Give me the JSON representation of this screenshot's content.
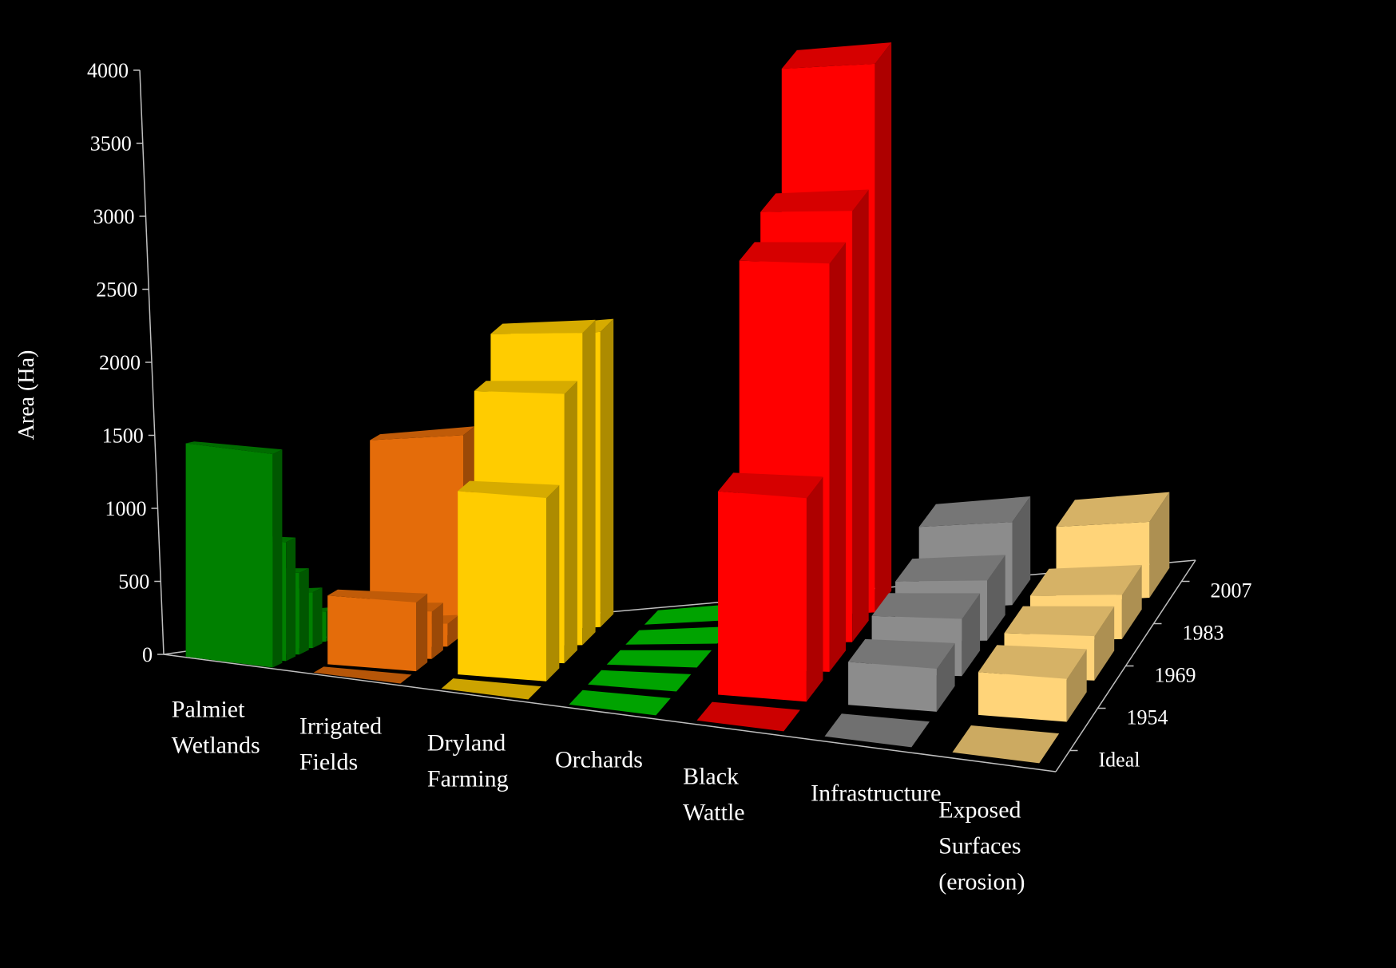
{
  "chart_data": {
    "type": "bar",
    "subtype": "3d-clustered-depth",
    "ylabel": "Area (Ha)",
    "ylim": [
      0,
      4000
    ],
    "yticks": [
      0,
      500,
      1000,
      1500,
      2000,
      2500,
      3000,
      3500,
      4000
    ],
    "ytick_labels": [
      "0",
      "500",
      "1000",
      "1500",
      "2000",
      "2500",
      "3000",
      "3500",
      "4000"
    ],
    "categories": [
      [
        "Palmiet",
        "Wetlands"
      ],
      [
        "Irrigated",
        "Fields"
      ],
      [
        "Dryland",
        "Farming"
      ],
      [
        "Orchards"
      ],
      [
        "Black",
        "Wattle"
      ],
      [
        "Infrastructure"
      ],
      [
        "Exposed",
        "Surfaces",
        "(erosion)"
      ]
    ],
    "depth_labels": [
      "Ideal",
      "1954",
      "1969",
      "1983",
      "2007"
    ],
    "series": [
      {
        "values": [
          1490,
          0,
          0,
          0,
          0,
          0,
          0
        ]
      },
      {
        "values": [
          830,
          480,
          1280,
          0,
          1420,
          300,
          300
        ]
      },
      {
        "values": [
          570,
          330,
          1880,
          0,
          2850,
          400,
          310
        ]
      },
      {
        "values": [
          390,
          160,
          2180,
          0,
          3010,
          420,
          310
        ]
      },
      {
        "values": [
          210,
          1390,
          2060,
          0,
          3830,
          580,
          530
        ]
      }
    ],
    "category_colors": [
      "#008000",
      "#E46C0A",
      "#FFCC00",
      "#00CC00",
      "#FF0000",
      "#8C8C8C",
      "#FFD479"
    ],
    "background": "#000000",
    "grid": false,
    "legend": "none"
  }
}
